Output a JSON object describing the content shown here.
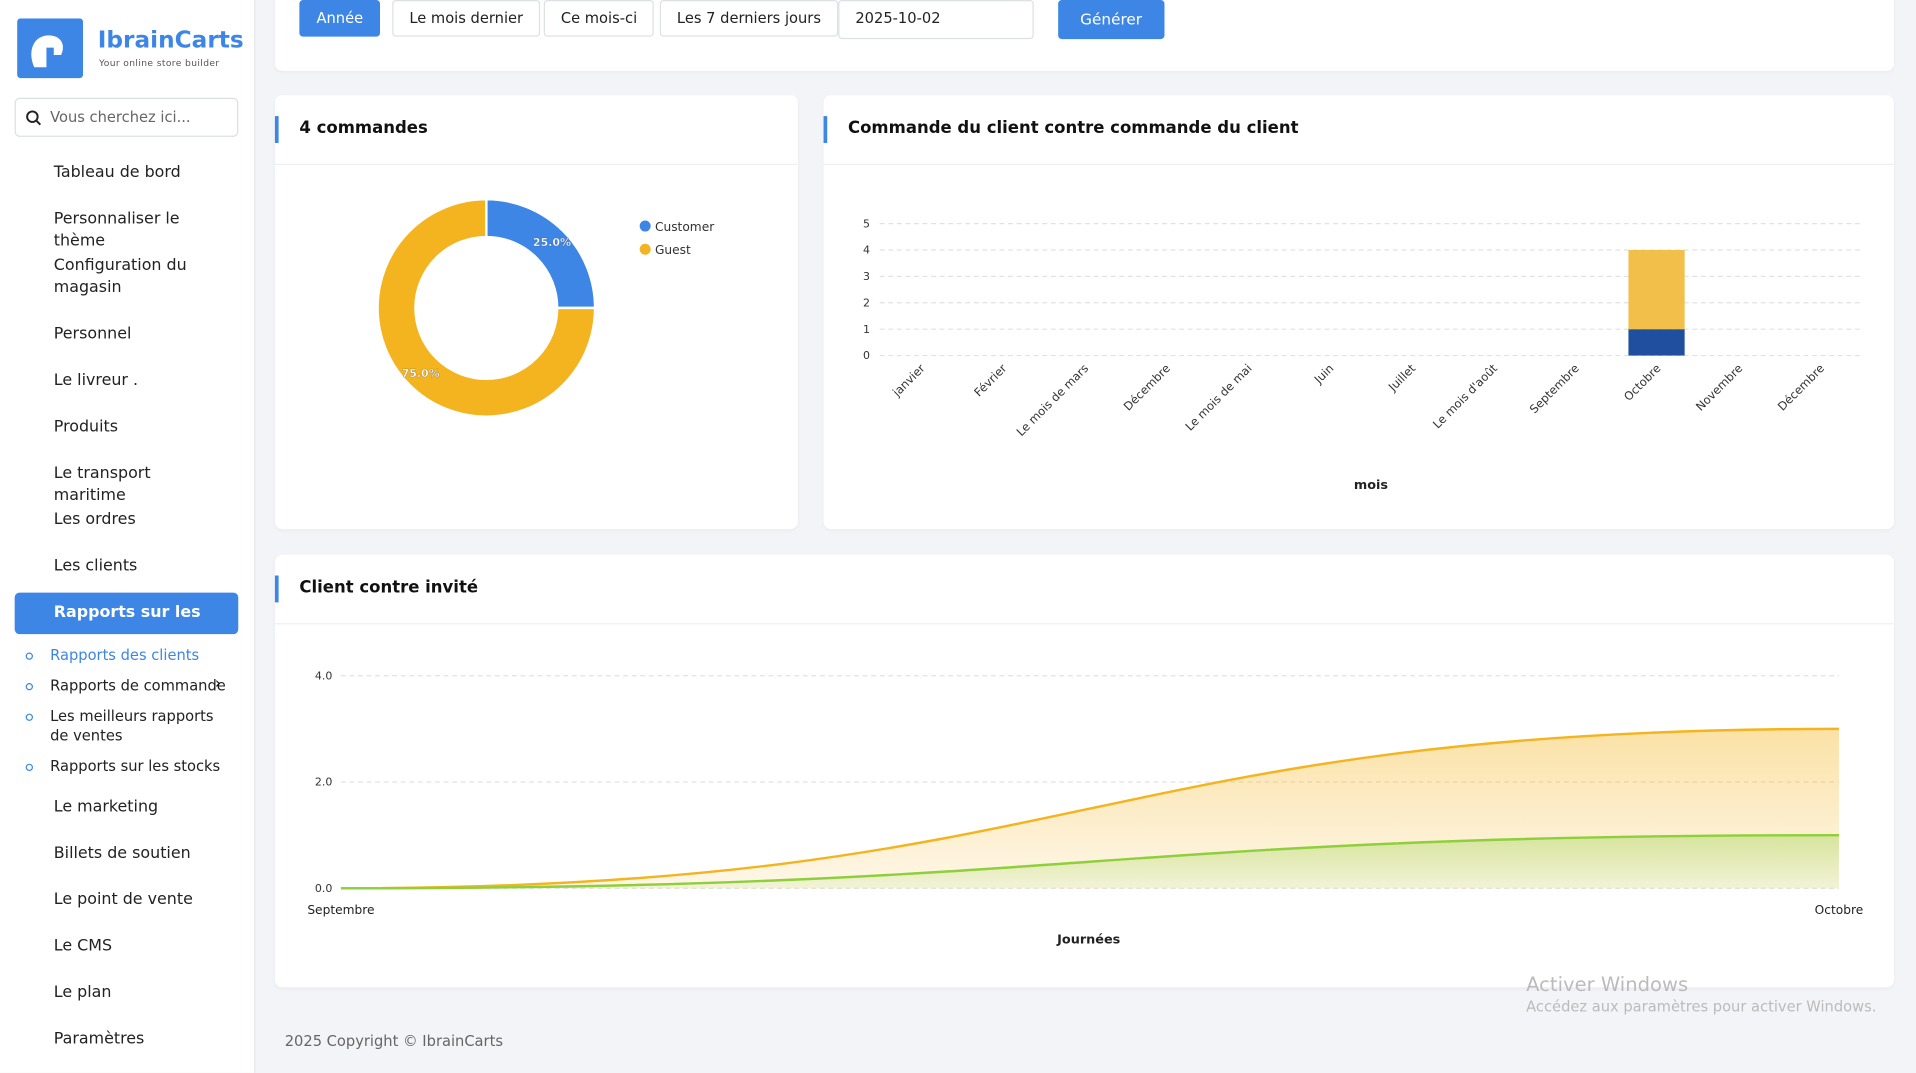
{
  "brand": {
    "name": "IbrainCarts",
    "tagline": "Your online store builder"
  },
  "search_placeholder": "Vous cherchez ici...",
  "sidebar": {
    "items": [
      "Tableau de bord",
      "Personnaliser le thème",
      "Configuration du magasin",
      "Personnel",
      "Le livreur .",
      "Produits",
      "Le transport maritime",
      "Les ordres",
      "Les clients",
      "Rapports sur les",
      "Le marketing",
      "Billets de soutien",
      "Le point de vente",
      "Le CMS",
      "Le plan",
      "Paramètres"
    ],
    "subitems": [
      "Rapports des clients",
      "Rapports de commande",
      "Les meilleurs rapports de ventes",
      "Rapports sur les stocks"
    ]
  },
  "filters": {
    "buttons": [
      "Année",
      "Le mois dernier",
      "Ce mois-ci",
      "Les 7 derniers jours"
    ],
    "date": "2025-10-02",
    "submit": "Générer"
  },
  "chart_data": [
    {
      "type": "pie",
      "title": "4 commandes",
      "categories": [
        "Customer",
        "Guest"
      ],
      "values": [
        25,
        75
      ],
      "value_labels": [
        "25.0%",
        "75.0%"
      ],
      "colors": [
        "#3d86e6",
        "#f4b41f"
      ],
      "legend": "top-right"
    },
    {
      "type": "bar",
      "stacked": true,
      "title": "Commande du client contre commande du client",
      "x_label": "mois",
      "categories": [
        "janvier",
        "Février",
        "Le mois de mars",
        "Décembre",
        "Le mois de mai",
        "Juin",
        "Juillet",
        "Le mois d'août",
        "Septembre",
        "Octobre",
        "Novembre",
        "Décembre"
      ],
      "series": [
        {
          "color": "#1f4f9e",
          "values": [
            0,
            0,
            0,
            0,
            0,
            0,
            0,
            0,
            0,
            1,
            0,
            0
          ]
        },
        {
          "color": "#f2c04a",
          "values": [
            0,
            0,
            0,
            0,
            0,
            0,
            0,
            0,
            0,
            3,
            0,
            0
          ]
        }
      ],
      "ylim": [
        0,
        5
      ],
      "yticks": [
        0,
        1,
        2,
        3,
        4,
        5
      ],
      "grid": true
    },
    {
      "type": "area",
      "title": "Client contre invité",
      "x_label": "Journées",
      "categories": [
        "Septembre",
        "Octobre"
      ],
      "series": [
        {
          "color": "#f4b41f",
          "values": [
            0,
            3
          ]
        },
        {
          "color": "#8fcf3c",
          "values": [
            0,
            1
          ]
        }
      ],
      "ylim": [
        0,
        4
      ],
      "yticks": [
        {
          "value": 0,
          "label": "0.0"
        },
        {
          "value": 2,
          "label": "2.0"
        },
        {
          "value": 4,
          "label": "4.0"
        }
      ],
      "grid": true
    }
  ],
  "watermark": {
    "title": "Activer Windows",
    "text": "Accédez aux paramètres pour activer Windows."
  },
  "footer": "2025 Copyright © IbrainCarts"
}
